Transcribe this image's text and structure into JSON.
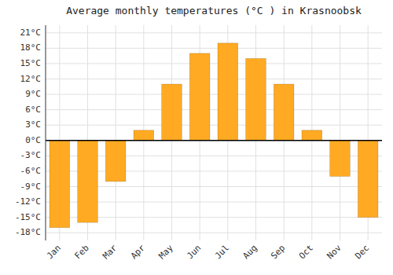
{
  "chart_data": {
    "type": "bar",
    "title": "Average monthly temperatures (°C ) in Krasnoobsk",
    "categories": [
      "Jan",
      "Feb",
      "Mar",
      "Apr",
      "May",
      "Jun",
      "Jul",
      "Aug",
      "Sep",
      "Oct",
      "Nov",
      "Dec"
    ],
    "values": [
      -17,
      -16,
      -8,
      2,
      11,
      17,
      19,
      16,
      11,
      2,
      -7,
      -15
    ],
    "color": "#FFAA22",
    "ylim": [
      -19.5,
      22.5
    ],
    "yticks": [
      {
        "value": -18,
        "label": "-18°C"
      },
      {
        "value": -15,
        "label": "-15°C"
      },
      {
        "value": -12,
        "label": "-12°C"
      },
      {
        "value": -9,
        "label": "-9°C"
      },
      {
        "value": -6,
        "label": "-6°C"
      },
      {
        "value": -3,
        "label": "-3°C"
      },
      {
        "value": 0,
        "label": "0°C"
      },
      {
        "value": 3,
        "label": "3°C"
      },
      {
        "value": 6,
        "label": "6°C"
      },
      {
        "value": 9,
        "label": "9°C"
      },
      {
        "value": 12,
        "label": "12°C"
      },
      {
        "value": 15,
        "label": "15°C"
      },
      {
        "value": 18,
        "label": "18°C"
      },
      {
        "value": 21,
        "label": "21°C"
      }
    ],
    "grid": true
  }
}
